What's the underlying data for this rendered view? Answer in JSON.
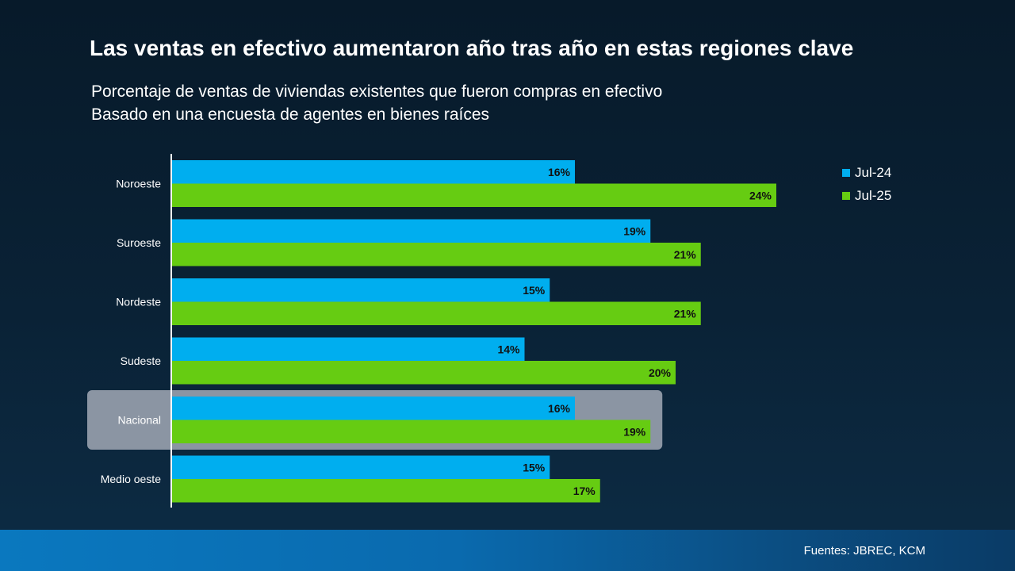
{
  "title": "Las ventas en efectivo aumentaron año tras año en estas regiones clave",
  "subtitle": [
    "Porcentaje de ventas de viviendas existentes que fueron compras en efectivo",
    "Basado en una encuesta de agentes en bienes raíces"
  ],
  "source": "Fuentes: JBREC, KCM",
  "colors": {
    "series_1": "#00aeef",
    "series_2": "#66cc12",
    "highlight": "#8b95a3"
  },
  "chart_data": {
    "type": "bar",
    "orientation": "horizontal",
    "categories": [
      "Noroeste",
      "Suroeste",
      "Nordeste",
      "Sudeste",
      "Nacional",
      "Medio oeste"
    ],
    "series": [
      {
        "name": "Jul-24",
        "values": [
          16,
          19,
          15,
          14,
          16,
          15
        ]
      },
      {
        "name": "Jul-25",
        "values": [
          24,
          21,
          21,
          20,
          19,
          17
        ]
      }
    ],
    "value_suffix": "%",
    "highlighted_category": "Nacional",
    "xlim": [
      0,
      30
    ],
    "grid": false,
    "legend_position": "top-right",
    "title": "",
    "xlabel": "",
    "ylabel": ""
  }
}
